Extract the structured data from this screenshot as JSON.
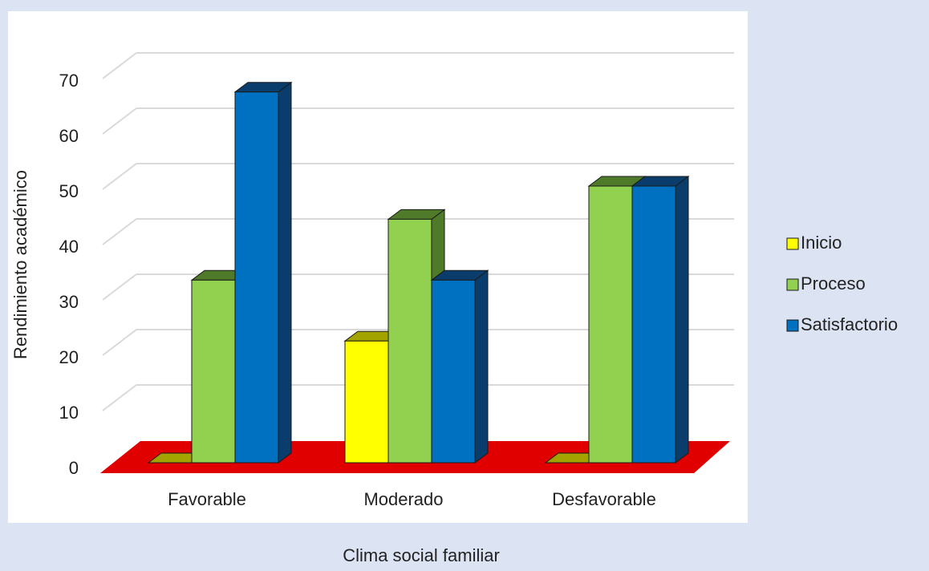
{
  "chart_data": {
    "type": "bar",
    "title": "",
    "xlabel": "Clima social familiar",
    "ylabel": "Rendimiento académico",
    "categories": [
      "Favorable",
      "Moderado",
      "Desfavorable"
    ],
    "series": [
      {
        "name": "Inicio",
        "values": [
          0,
          22,
          0
        ],
        "color": "#ffff00",
        "side_color": "#a3a300"
      },
      {
        "name": "Proceso",
        "values": [
          33,
          44,
          50
        ],
        "color": "#92d050",
        "side_color": "#4f7a29"
      },
      {
        "name": "Satisfactorio",
        "values": [
          67,
          33,
          50
        ],
        "color": "#0070c0",
        "side_color": "#0a3d6b"
      }
    ],
    "ylim": [
      0,
      70
    ],
    "yticks": [
      0,
      10,
      20,
      30,
      40,
      50,
      60,
      70
    ],
    "grid": true,
    "legend": "right",
    "floor_color": "#e00000",
    "plot_background": "#ffffff",
    "page_background": "#dce4f3"
  }
}
